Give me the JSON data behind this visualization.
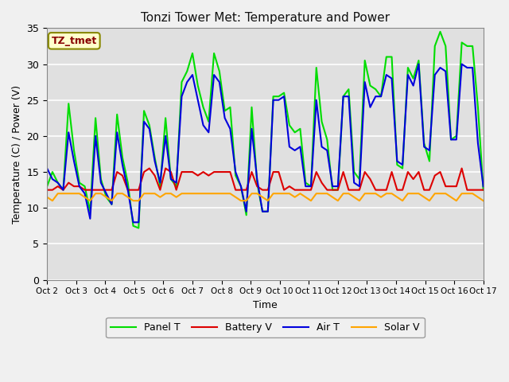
{
  "title": "Tonzi Tower Met: Temperature and Power",
  "xlabel": "Time",
  "ylabel": "Temperature (C) / Power (V)",
  "annotation": "TZ_tmet",
  "ylim": [
    0,
    35
  ],
  "yticks": [
    0,
    5,
    10,
    15,
    20,
    25,
    30,
    35
  ],
  "xtick_labels": [
    "Oct 2",
    "Oct 3",
    "Oct 4",
    "Oct 5",
    "Oct 6",
    "Oct 7",
    "Oct 8",
    "Oct 9",
    "Oct 10",
    "Oct 11",
    "Oct 12",
    "Oct 13",
    "Oct 14",
    "Oct 15",
    "Oct 16",
    "Oct 17"
  ],
  "legend_entries": [
    "Panel T",
    "Battery V",
    "Air T",
    "Solar V"
  ],
  "colors": {
    "panel_t": "#00DD00",
    "battery_v": "#DD0000",
    "air_t": "#0000DD",
    "solar_v": "#FFA500"
  },
  "background_color": "#E0E0E0",
  "fig_facecolor": "#F0F0F0",
  "annotation_bg": "#FFFFCC",
  "annotation_color": "#880000",
  "annotation_border": "#888800",
  "grid_color": "#FFFFFF",
  "panel_t": [
    13.0,
    15.0,
    13.5,
    12.5,
    24.5,
    18.0,
    13.5,
    13.0,
    9.5,
    22.5,
    14.0,
    11.5,
    10.5,
    23.0,
    17.0,
    13.5,
    7.5,
    7.2,
    23.5,
    21.5,
    17.0,
    13.0,
    22.5,
    14.0,
    13.0,
    27.5,
    29.0,
    31.5,
    27.0,
    24.0,
    22.0,
    31.5,
    29.0,
    23.5,
    24.0,
    14.5,
    13.0,
    9.0,
    24.0,
    13.5,
    9.5,
    9.5,
    25.5,
    25.5,
    26.0,
    21.5,
    20.5,
    21.0,
    13.5,
    13.0,
    29.5,
    22.0,
    19.5,
    12.5,
    12.5,
    25.5,
    26.5,
    15.0,
    14.0,
    30.5,
    27.0,
    26.5,
    25.5,
    31.0,
    31.0,
    16.0,
    15.5,
    29.5,
    28.0,
    30.5,
    19.0,
    16.5,
    32.5,
    34.5,
    32.5,
    19.5,
    20.0,
    33.0,
    32.5,
    32.5,
    24.0,
    12.5
  ],
  "battery_v": [
    12.5,
    12.5,
    13.0,
    12.5,
    13.5,
    13.0,
    13.0,
    12.5,
    12.5,
    12.5,
    12.5,
    12.5,
    12.5,
    15.0,
    14.5,
    12.5,
    12.5,
    12.5,
    15.0,
    15.5,
    14.5,
    12.5,
    15.5,
    15.0,
    12.5,
    15.0,
    15.0,
    15.0,
    14.5,
    15.0,
    14.5,
    15.0,
    15.0,
    15.0,
    15.0,
    12.5,
    12.5,
    12.5,
    15.0,
    13.0,
    12.5,
    12.5,
    15.0,
    15.0,
    12.5,
    13.0,
    12.5,
    12.5,
    12.5,
    12.5,
    15.0,
    13.5,
    12.5,
    12.5,
    12.5,
    15.0,
    12.5,
    12.5,
    12.5,
    15.0,
    14.0,
    12.5,
    12.5,
    12.5,
    15.0,
    12.5,
    12.5,
    15.0,
    14.0,
    15.0,
    12.5,
    12.5,
    14.5,
    15.0,
    13.0,
    13.0,
    13.0,
    15.5,
    12.5,
    12.5,
    12.5,
    12.5
  ],
  "air_t": [
    15.5,
    14.0,
    13.5,
    12.5,
    20.5,
    16.5,
    13.0,
    12.0,
    8.5,
    20.0,
    13.5,
    12.0,
    10.5,
    20.5,
    16.0,
    12.5,
    8.0,
    8.0,
    22.0,
    21.0,
    16.5,
    13.5,
    20.0,
    14.0,
    13.5,
    25.5,
    27.5,
    28.5,
    25.0,
    21.5,
    20.5,
    28.5,
    27.5,
    22.5,
    21.0,
    15.0,
    13.0,
    9.5,
    21.0,
    14.0,
    9.5,
    9.5,
    25.0,
    25.0,
    25.5,
    18.5,
    18.0,
    18.5,
    13.0,
    13.0,
    25.0,
    18.5,
    18.0,
    13.0,
    13.0,
    25.5,
    25.5,
    13.5,
    13.0,
    27.5,
    24.0,
    25.5,
    25.5,
    28.5,
    28.0,
    16.5,
    16.0,
    28.5,
    27.0,
    30.0,
    18.5,
    18.0,
    28.5,
    29.5,
    29.0,
    19.5,
    19.5,
    30.0,
    29.5,
    29.5,
    19.0,
    13.0
  ],
  "solar_v": [
    11.5,
    11.0,
    12.0,
    12.0,
    12.0,
    12.0,
    12.0,
    11.5,
    11.0,
    12.0,
    12.0,
    11.5,
    11.0,
    12.0,
    12.0,
    11.5,
    11.0,
    11.0,
    12.0,
    12.0,
    12.0,
    11.5,
    12.0,
    12.0,
    11.5,
    12.0,
    12.0,
    12.0,
    12.0,
    12.0,
    12.0,
    12.0,
    12.0,
    12.0,
    12.0,
    11.5,
    11.0,
    11.0,
    12.0,
    12.0,
    11.5,
    11.0,
    12.0,
    12.0,
    12.0,
    12.0,
    11.5,
    12.0,
    11.5,
    11.0,
    12.0,
    12.0,
    12.0,
    11.5,
    11.0,
    12.0,
    12.0,
    11.5,
    11.0,
    12.0,
    12.0,
    12.0,
    11.5,
    12.0,
    12.0,
    11.5,
    11.0,
    12.0,
    12.0,
    12.0,
    11.5,
    11.0,
    12.0,
    12.0,
    12.0,
    11.5,
    11.0,
    12.0,
    12.0,
    12.0,
    11.5,
    11.0
  ]
}
